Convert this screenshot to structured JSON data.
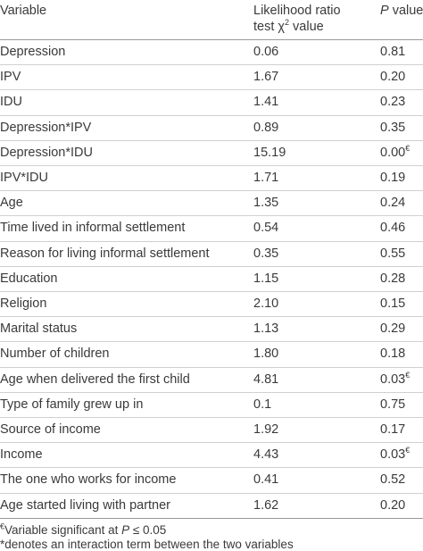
{
  "header": {
    "columns": [
      {
        "text": "Variable"
      },
      {
        "line1": "Likelihood ratio",
        "line2": "test χ",
        "sup": "2",
        "after": " value"
      },
      {
        "italic": "P",
        "text": " value"
      }
    ]
  },
  "table": {
    "rows": [
      {
        "variable": "Depression",
        "ratio": "0.06",
        "p": "0.81"
      },
      {
        "variable": "IPV",
        "ratio": "1.67",
        "p": "0.20"
      },
      {
        "variable": "IDU",
        "ratio": "1.41",
        "p": "0.23"
      },
      {
        "variable": "Depression*IPV",
        "ratio": "0.89",
        "p": "0.35"
      },
      {
        "variable": "Depression*IDU",
        "ratio": "15.19",
        "p": "0.00",
        "p_note": "€"
      },
      {
        "variable": "IPV*IDU",
        "ratio": "1.71",
        "p": "0.19"
      },
      {
        "variable": "Age",
        "ratio": "1.35",
        "p": "0.24"
      },
      {
        "variable": "Time lived in informal settlement",
        "ratio": "0.54",
        "p": "0.46"
      },
      {
        "variable": "Reason for living informal settlement",
        "ratio": "0.35",
        "p": "0.55"
      },
      {
        "variable": "Education",
        "ratio": "1.15",
        "p": "0.28"
      },
      {
        "variable": "Religion",
        "ratio": "2.10",
        "p": "0.15"
      },
      {
        "variable": "Marital status",
        "ratio": "1.13",
        "p": "0.29"
      },
      {
        "variable": "Number of children",
        "ratio": "1.80",
        "p": "0.18"
      },
      {
        "variable": "Age when delivered the first child",
        "ratio": "4.81",
        "p": "0.03",
        "p_note": "€"
      },
      {
        "variable": "Type of family grew up in",
        "ratio": "0.1",
        "p": "0.75"
      },
      {
        "variable": "Source of income",
        "ratio": "1.92",
        "p": "0.17"
      },
      {
        "variable": "Income",
        "ratio": "4.43",
        "p": "0.03",
        "p_note": "€"
      },
      {
        "variable": "The one who works for income",
        "ratio": "0.41",
        "p": "0.52"
      },
      {
        "variable": "Age started living with partner",
        "ratio": "1.62",
        "p": "0.20"
      }
    ]
  },
  "footnotes": [
    {
      "mark": "€",
      "text": "Variable significant at ",
      "italic": "P",
      "after": " ≤ 0.05"
    },
    {
      "text": "*denotes an interaction term between the two variables"
    }
  ]
}
